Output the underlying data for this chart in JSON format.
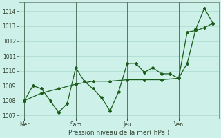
{
  "title": "Pression niveau de la mer( hPa )",
  "bg_color": "#cdf0e8",
  "grid_color": "#aad8cc",
  "line_color": "#1a5c1a",
  "ylim": [
    1006.8,
    1014.6
  ],
  "yticks": [
    1007,
    1008,
    1009,
    1010,
    1011,
    1012,
    1013,
    1014
  ],
  "xtick_labels": [
    "Mer",
    "Sam",
    "Jeu",
    "Ven"
  ],
  "xtick_pos": [
    0,
    36,
    72,
    108
  ],
  "vline_x": [
    0,
    36,
    72,
    108
  ],
  "series1_x": [
    0,
    6,
    12,
    18,
    24,
    30,
    36,
    42,
    48,
    54,
    60,
    66,
    72,
    78,
    84,
    90,
    96,
    102,
    108,
    114,
    120,
    126,
    132
  ],
  "series1_y": [
    1008.0,
    1009.0,
    1008.8,
    1008.0,
    1007.2,
    1007.8,
    1010.2,
    1009.3,
    1008.8,
    1008.2,
    1007.3,
    1008.6,
    1010.5,
    1010.5,
    1009.9,
    1010.2,
    1009.8,
    1009.8,
    1009.5,
    1010.5,
    1012.8,
    1014.2,
    1013.2
  ],
  "series2_x": [
    0,
    12,
    24,
    36,
    48,
    60,
    72,
    84,
    96,
    108,
    114,
    120,
    126,
    132
  ],
  "series2_y": [
    1008.0,
    1008.5,
    1008.8,
    1009.1,
    1009.3,
    1009.3,
    1009.4,
    1009.4,
    1009.4,
    1009.5,
    1012.6,
    1012.7,
    1012.9,
    1013.2
  ],
  "figsize": [
    3.2,
    2.0
  ],
  "dpi": 100
}
